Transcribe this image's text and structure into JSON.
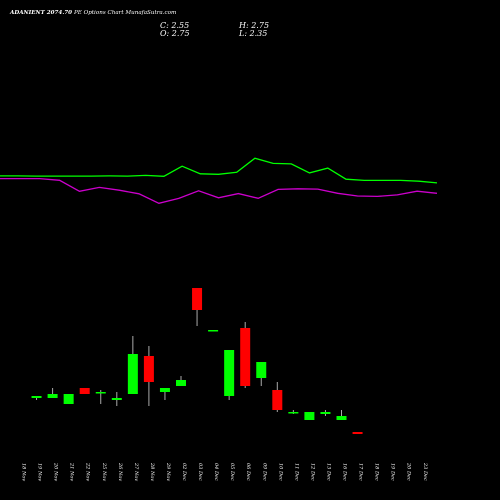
{
  "header": {
    "title": "ADANIENT 2074.70",
    "subtitle": "PE Options  Chart MunafaSutra.com",
    "ohlc": {
      "c_label": "C: 2.55",
      "o_label": "O: 2.75",
      "h_label": "H: 2.75",
      "l_label": "L: 2.35"
    }
  },
  "chart_data": {
    "type": "candlestick",
    "title": "ADANIENT 2074.70 PE Options Chart MunafaSutra.com",
    "background": "#000000",
    "up_color": "#00ff00",
    "down_color": "#ff0000",
    "line_colors": {
      "upper": "#00ff00",
      "lower": "#cc00cc"
    },
    "x_dates": [
      "18 Nov",
      "19 Nov",
      "20 Nov",
      "21 Nov",
      "22 Nov",
      "25 Nov",
      "26 Nov",
      "27 Nov",
      "28 Nov",
      "29 Nov",
      "02 Dec",
      "03 Dec",
      "04 Dec",
      "05 Dec",
      "06 Dec",
      "09 Dec",
      "10 Dec",
      "11 Dec",
      "12 Dec",
      "13 Dec",
      "16 Dec",
      "17 Dec",
      "18 Dec",
      "19 Dec",
      "20 Dec",
      "23 Dec"
    ],
    "price_scale": {
      "min": 0,
      "max": 10
    },
    "candles": [
      {
        "date": "19 Nov",
        "open": 2.6,
        "high": 2.7,
        "low": 2.5,
        "close": 2.7
      },
      {
        "date": "20 Nov",
        "open": 2.6,
        "high": 3.1,
        "low": 2.6,
        "close": 2.8
      },
      {
        "date": "21 Nov",
        "open": 2.3,
        "high": 2.8,
        "low": 2.3,
        "close": 2.8
      },
      {
        "date": "22 Nov",
        "open": 3.1,
        "high": 3.1,
        "low": 2.8,
        "close": 2.8
      },
      {
        "date": "25 Nov",
        "open": 2.9,
        "high": 3.0,
        "low": 2.3,
        "close": 2.9
      },
      {
        "date": "26 Nov",
        "open": 2.5,
        "high": 2.9,
        "low": 2.2,
        "close": 2.6
      },
      {
        "date": "27 Nov",
        "open": 2.8,
        "high": 5.7,
        "low": 2.8,
        "close": 4.8
      },
      {
        "date": "28 Nov",
        "open": 4.7,
        "high": 5.2,
        "low": 2.2,
        "close": 3.4
      },
      {
        "date": "29 Nov",
        "open": 2.9,
        "high": 3.1,
        "low": 2.5,
        "close": 3.1
      },
      {
        "date": "02 Dec",
        "open": 3.2,
        "high": 3.7,
        "low": 3.2,
        "close": 3.5
      },
      {
        "date": "03 Dec",
        "open": 8.1,
        "high": 8.1,
        "low": 6.2,
        "close": 7.0
      },
      {
        "date": "04 Dec",
        "open": 5.95,
        "high": 6.0,
        "low": 5.95,
        "close": 6.0
      },
      {
        "date": "05 Dec",
        "open": 2.7,
        "high": 5.0,
        "low": 2.5,
        "close": 5.0
      },
      {
        "date": "06 Dec",
        "open": 6.1,
        "high": 6.4,
        "low": 3.1,
        "close": 3.2
      },
      {
        "date": "09 Dec",
        "open": 3.6,
        "high": 4.4,
        "low": 3.2,
        "close": 4.4
      },
      {
        "date": "10 Dec",
        "open": 3.0,
        "high": 3.4,
        "low": 1.9,
        "close": 2.0
      },
      {
        "date": "11 Dec",
        "open": 1.9,
        "high": 2.0,
        "low": 1.8,
        "close": 1.9
      },
      {
        "date": "12 Dec",
        "open": 1.5,
        "high": 1.9,
        "low": 1.5,
        "close": 1.9
      },
      {
        "date": "13 Dec",
        "open": 1.8,
        "high": 2.0,
        "low": 1.7,
        "close": 1.9
      },
      {
        "date": "16 Dec",
        "open": 1.5,
        "high": 2.0,
        "low": 1.5,
        "close": 1.7
      },
      {
        "date": "17 Dec",
        "open": 0.9,
        "high": 0.9,
        "low": 0.8,
        "close": 0.8
      }
    ],
    "upper_line": [
      49.4,
      49.4,
      49.3,
      49.3,
      49.3,
      49.3,
      49.4,
      49.3,
      49.7,
      49.1,
      55.9,
      50.8,
      50.5,
      51.8,
      61.2,
      57.7,
      57.4,
      51.4,
      54.6,
      47.2,
      46.4,
      46.4,
      46.4,
      45.9,
      44.7
    ],
    "lower_line": [
      47.6,
      47.6,
      47.6,
      46.5,
      39.1,
      41.7,
      39.9,
      37.5,
      31.1,
      34.4,
      39.5,
      34.8,
      37.6,
      34.5,
      40.4,
      40.8,
      40.6,
      37.8,
      36.0,
      35.7,
      36.7,
      39.2,
      37.8
    ]
  }
}
